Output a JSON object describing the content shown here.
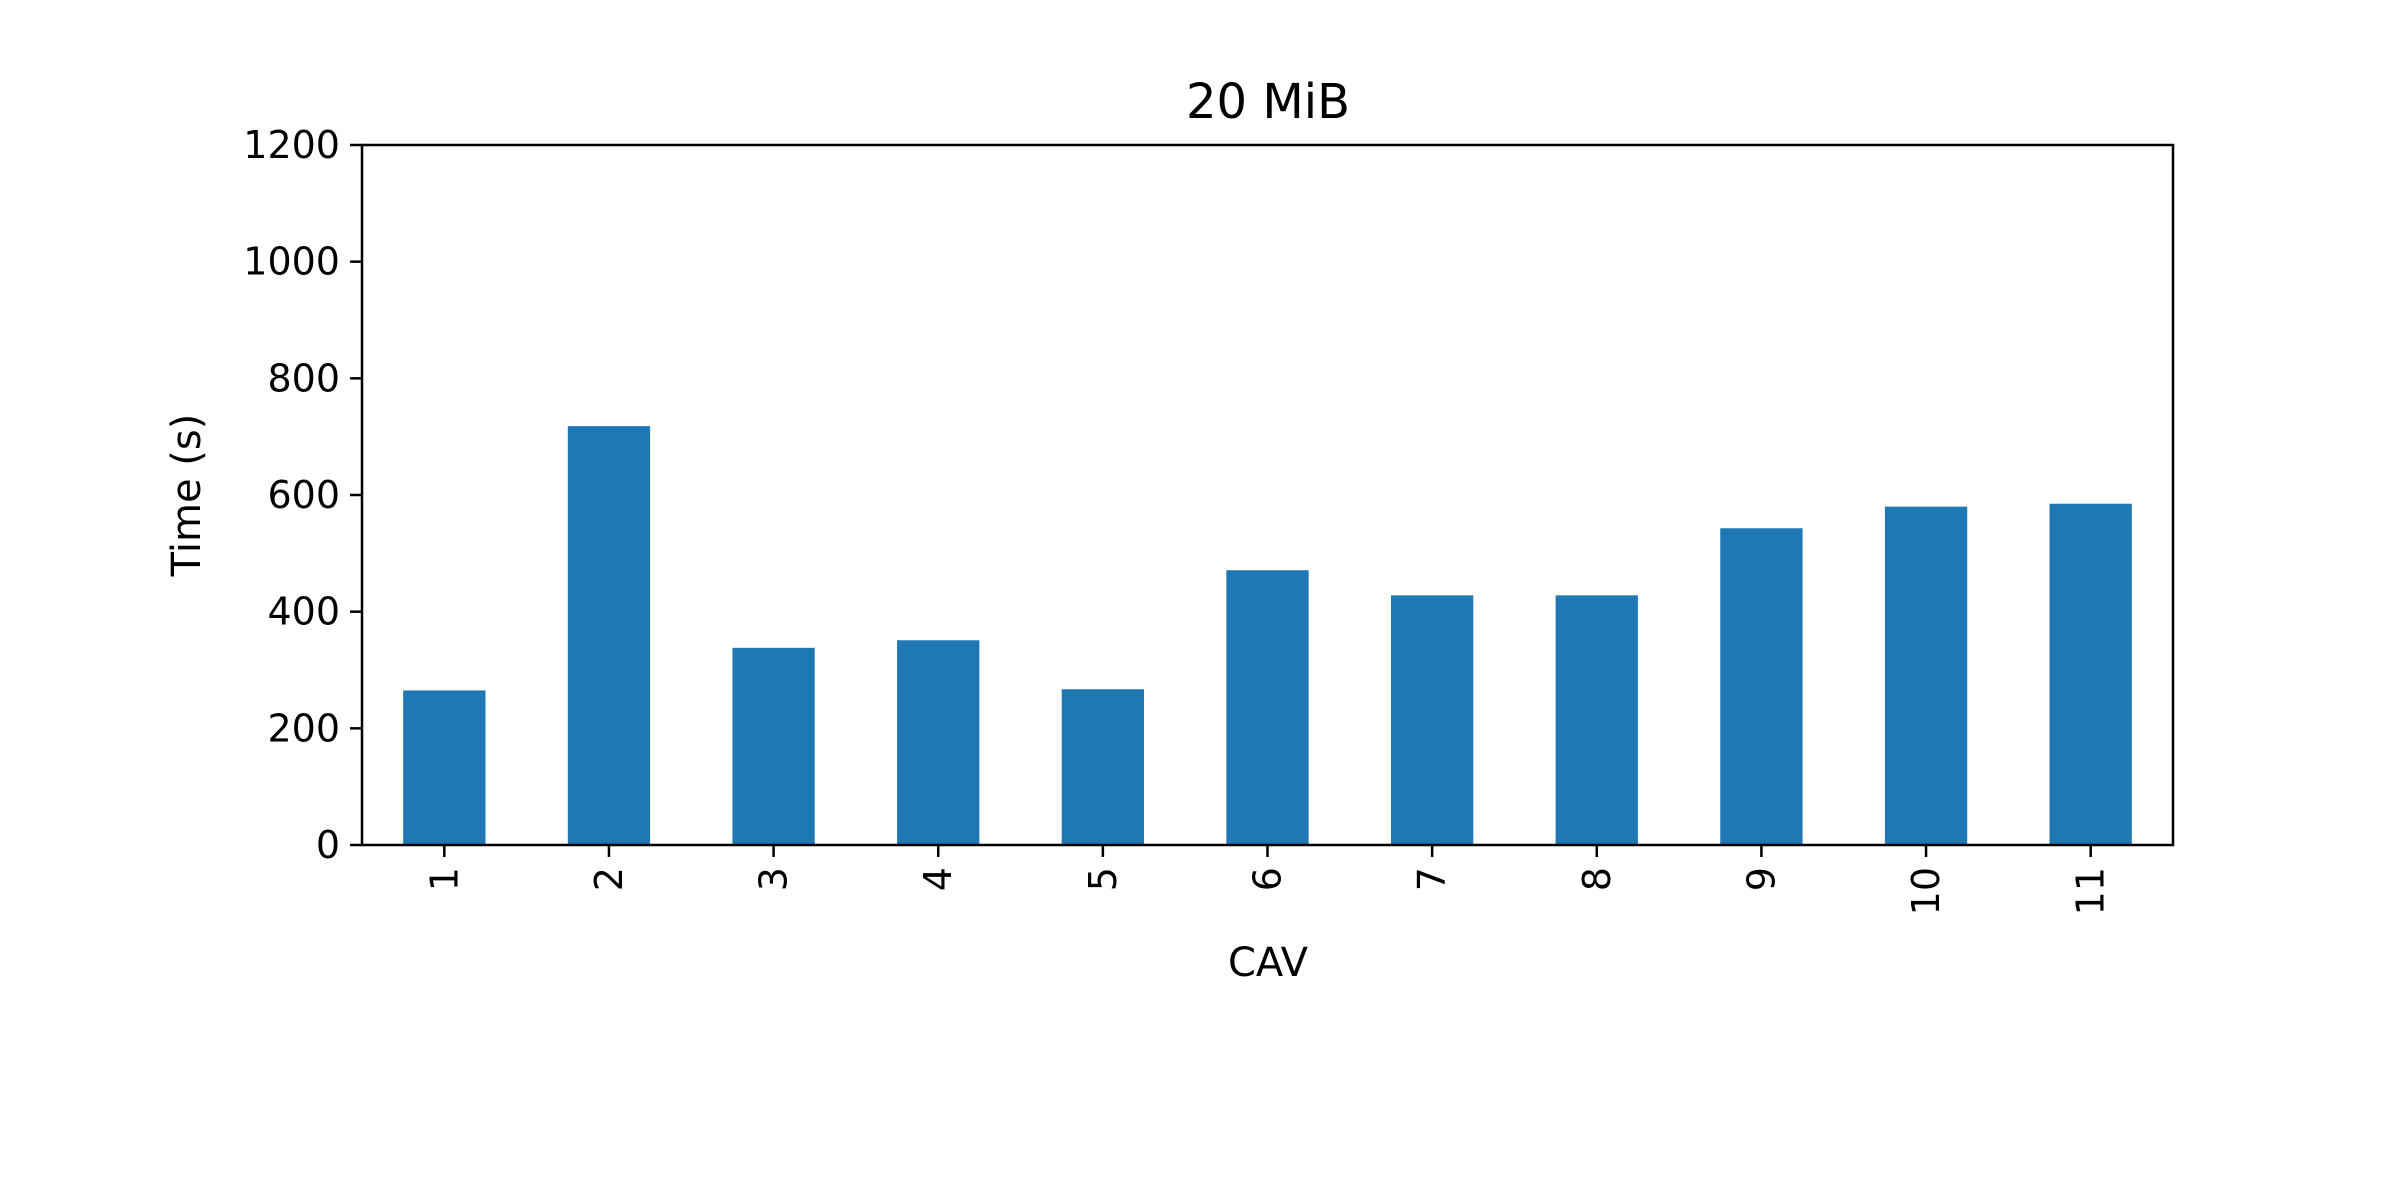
{
  "chart_data": {
    "type": "bar",
    "title": "20 MiB",
    "xlabel": "CAV",
    "ylabel": "Time (s)",
    "categories": [
      "1",
      "2",
      "3",
      "4",
      "5",
      "6",
      "7",
      "8",
      "9",
      "10",
      "11"
    ],
    "values": [
      265,
      718,
      338,
      351,
      267,
      471,
      428,
      428,
      543,
      580,
      585
    ],
    "ylim": [
      0,
      1200
    ],
    "yticks": [
      "0",
      "200",
      "400",
      "600",
      "800",
      "1000",
      "1200"
    ],
    "bar_color": "#1f77b4",
    "grid": false,
    "legend": "none"
  }
}
